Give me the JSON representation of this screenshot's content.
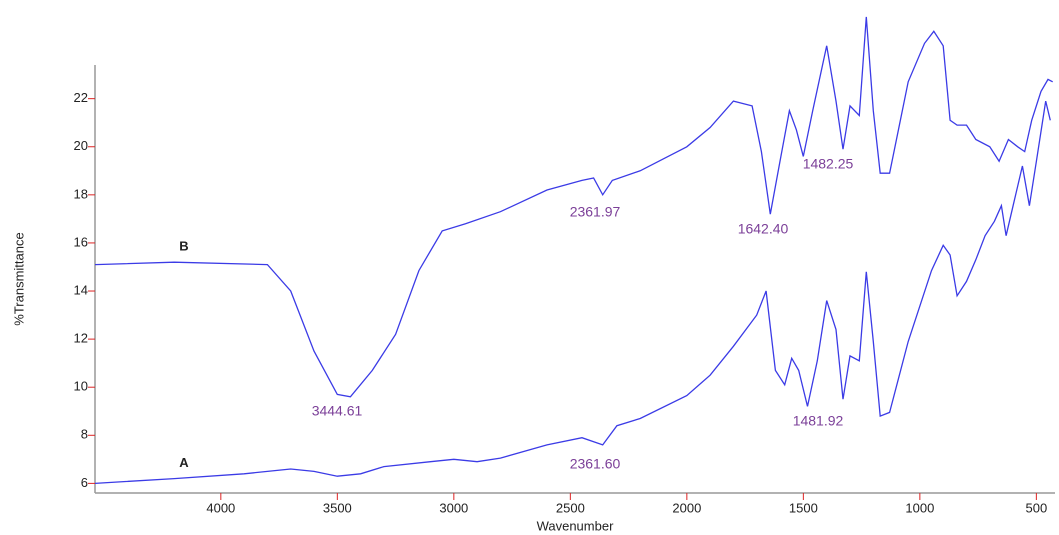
{
  "chart_data": {
    "type": "line",
    "x_label": "Wavenumber",
    "y_label": "%Transmittance",
    "xlim": [
      4540,
      420
    ],
    "ylim": [
      5.6,
      23.4
    ],
    "xticks": [
      4000,
      3500,
      3000,
      2500,
      2000,
      1500,
      1000,
      500
    ],
    "yticks": [
      6,
      8,
      10,
      12,
      14,
      16,
      18,
      20,
      22
    ],
    "series": [
      {
        "name": "B",
        "color": "#3b3be6",
        "x": [
          4540,
          4200,
          3800,
          3700,
          3600,
          3500,
          3444,
          3350,
          3250,
          3150,
          3050,
          2950,
          2800,
          2600,
          2450,
          2400,
          2361,
          2320,
          2200,
          2100,
          2000,
          1900,
          1800,
          1720,
          1680,
          1642,
          1600,
          1560,
          1530,
          1500,
          1460,
          1400,
          1360,
          1330,
          1300,
          1260,
          1230,
          1200,
          1170,
          1130,
          1050,
          980,
          940,
          900,
          870,
          840,
          800,
          760,
          700,
          660,
          620,
          580,
          550,
          520,
          480,
          450,
          430
        ],
        "values": [
          15.1,
          15.2,
          15.1,
          14.0,
          11.5,
          9.7,
          9.6,
          10.7,
          12.2,
          14.85,
          16.5,
          16.8,
          17.3,
          18.2,
          18.6,
          18.7,
          18.0,
          18.6,
          19.0,
          19.5,
          20.0,
          20.8,
          21.9,
          21.7,
          19.8,
          17.2,
          19.4,
          21.5,
          20.7,
          19.6,
          21.5,
          24.2,
          21.9,
          19.9,
          21.7,
          21.3,
          25.4,
          21.5,
          18.9,
          18.9,
          22.7,
          24.3,
          24.8,
          24.2,
          21.1,
          20.9,
          20.9,
          20.3,
          20.0,
          19.4,
          20.3,
          20.0,
          19.8,
          21.1,
          22.3,
          22.8,
          22.7
        ]
      },
      {
        "name": "A",
        "color": "#3b3be6",
        "x": [
          4540,
          4200,
          3900,
          3700,
          3600,
          3500,
          3400,
          3300,
          3100,
          3000,
          2900,
          2800,
          2600,
          2450,
          2361,
          2300,
          2200,
          2000,
          1900,
          1800,
          1700,
          1660,
          1620,
          1580,
          1550,
          1520,
          1482,
          1440,
          1400,
          1360,
          1330,
          1300,
          1260,
          1230,
          1200,
          1170,
          1130,
          1050,
          950,
          900,
          870,
          840,
          800,
          760,
          720,
          680,
          650,
          630,
          600,
          560,
          530,
          500,
          460,
          440
        ],
        "values": [
          6.0,
          6.2,
          6.4,
          6.6,
          6.5,
          6.3,
          6.4,
          6.7,
          6.9,
          7.0,
          6.9,
          7.05,
          7.6,
          7.9,
          7.6,
          8.4,
          8.7,
          9.65,
          10.5,
          11.7,
          13.0,
          14.0,
          10.7,
          10.1,
          11.2,
          10.7,
          9.2,
          11.1,
          13.6,
          12.4,
          9.5,
          11.3,
          11.1,
          14.8,
          11.9,
          8.8,
          8.95,
          11.9,
          14.85,
          15.9,
          15.5,
          13.8,
          14.4,
          15.3,
          16.3,
          16.9,
          17.55,
          16.3,
          17.55,
          19.2,
          17.55,
          19.4,
          21.9,
          21.1
        ]
      }
    ],
    "annotations": [
      "3444.61",
      "2361.97",
      "1642.40",
      "1482.25",
      "2361.60",
      "1481.92"
    ]
  }
}
